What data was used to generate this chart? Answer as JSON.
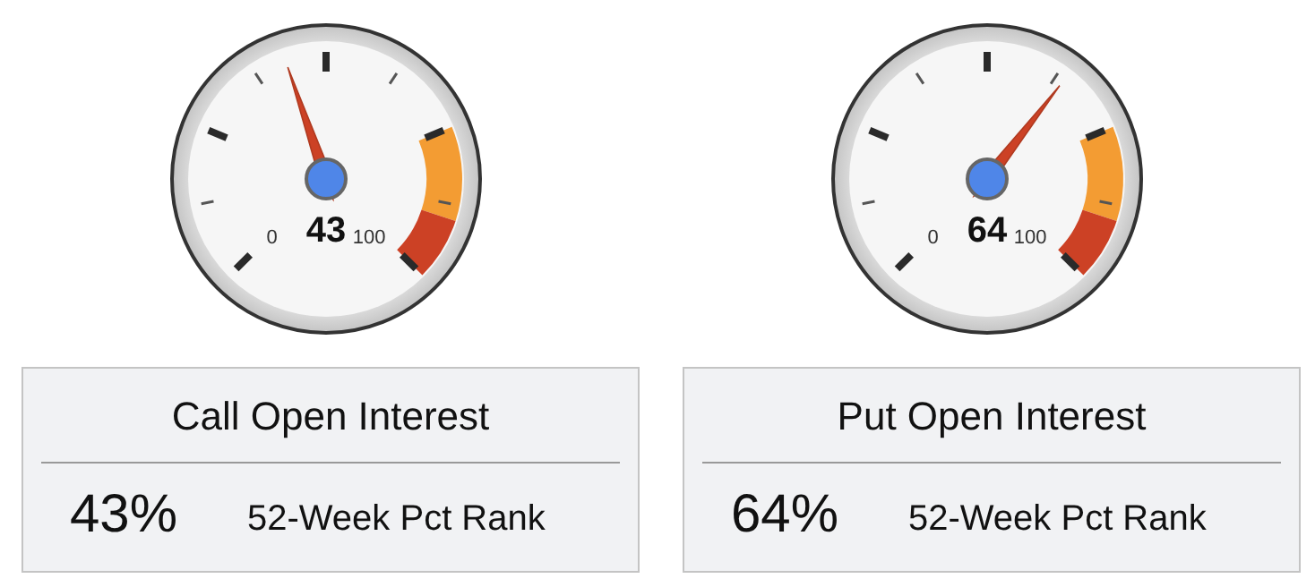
{
  "chart_data": [
    {
      "type": "other",
      "title": "Call Open Interest",
      "values": [
        43
      ],
      "data_labels": true,
      "annotations": [
        "0",
        "100",
        "43%",
        "52-Week Pct Rank"
      ]
    },
    {
      "type": "other",
      "title": "Put Open Interest",
      "values": [
        64
      ],
      "data_labels": true,
      "annotations": [
        "0",
        "100",
        "64%",
        "52-Week Pct Rank"
      ]
    }
  ]
}
